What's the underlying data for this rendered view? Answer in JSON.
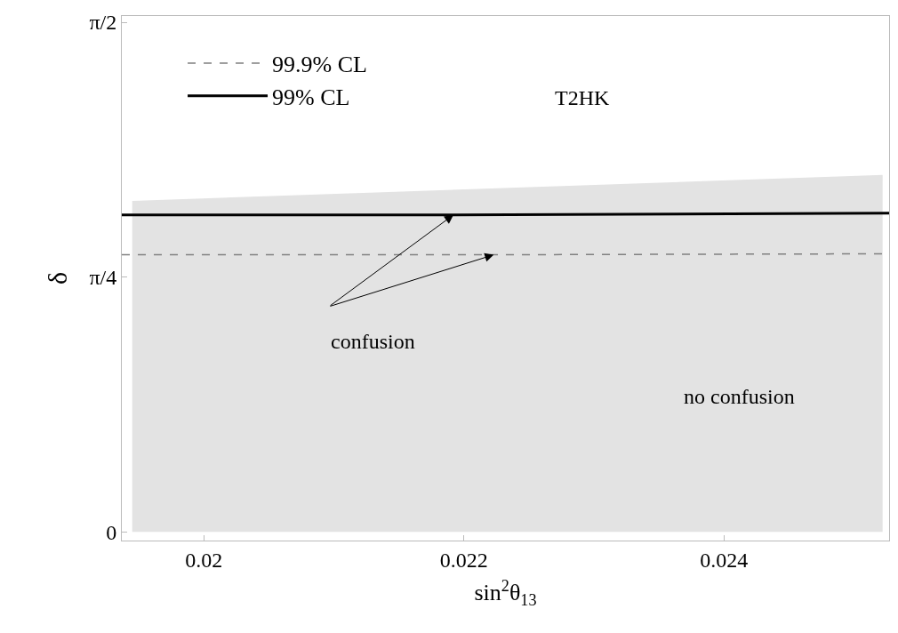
{
  "chart_data": {
    "type": "line",
    "xlabel": "sin$^{2}$θ$_{13}$",
    "ylabel": "δ",
    "xlim": [
      0.01937,
      0.02527
    ],
    "xticks": [
      0.02,
      0.022,
      0.024
    ],
    "ylim": [
      -0.027,
      1.59
    ],
    "yticks": [
      0,
      {
        "value": 0.7854,
        "label": "π/4"
      },
      {
        "value": 1.5708,
        "label": "π/2"
      }
    ],
    "series": [
      {
        "type": "area",
        "color": "#e3e3e3",
        "x": [
          0.01945,
          0.02522
        ],
        "values": [
          1.02,
          1.1
        ]
      },
      {
        "name": "99.9% CL",
        "color": "#808080",
        "line_style": "dashed",
        "x": [
          0.01937,
          0.02223,
          0.02527
        ],
        "values": [
          0.854,
          0.854,
          0.857
        ]
      },
      {
        "name": "99% CL",
        "color": "#000000",
        "line_style": "solid",
        "x": [
          0.01937,
          0.02192,
          0.02527
        ],
        "values": [
          0.977,
          0.977,
          0.982
        ]
      }
    ],
    "annotations": [
      "T2HK",
      {
        "text": "confusion",
        "x": 0.02192,
        "y": 0.977
      },
      "no confusion"
    ],
    "legend": "top left"
  }
}
